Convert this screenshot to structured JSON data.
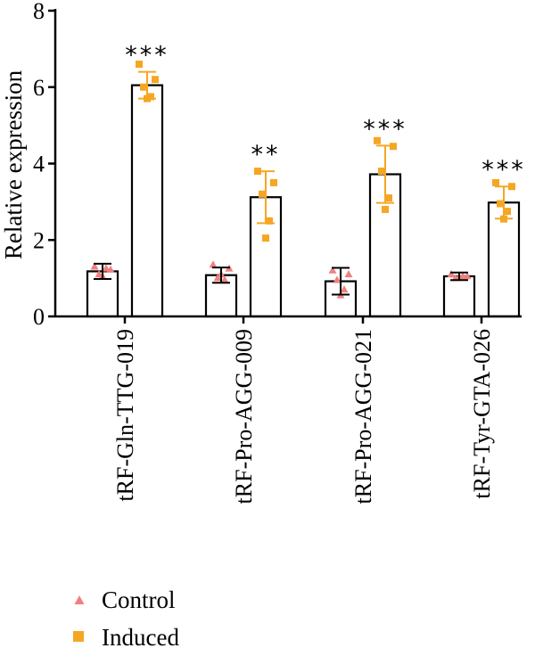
{
  "chart_data": {
    "type": "bar",
    "title": "",
    "xlabel": "",
    "ylabel": "Relative expression",
    "ylim": [
      0,
      8
    ],
    "yticks": [
      0,
      2,
      4,
      6,
      8
    ],
    "grid": false,
    "legend_position": "bottom-left",
    "categories": [
      "tRF-Gln-TTG-019",
      "tRF-Pro-AGG-009",
      "tRF-Pro-AGG-021",
      "tRF-Tyr-GTA-026"
    ],
    "significance": [
      "***",
      "**",
      "***",
      "***"
    ],
    "series": [
      {
        "name": "Control",
        "marker": "triangle",
        "color": "#f08080",
        "values": [
          1.18,
          1.08,
          0.92,
          1.05
        ],
        "error": [
          0.2,
          0.2,
          0.35,
          0.1
        ],
        "points": [
          [
            1.3,
            1.22,
            1.1,
            1.25,
            1.05
          ],
          [
            1.35,
            1.25,
            1.0,
            0.95,
            1.1
          ],
          [
            1.2,
            1.1,
            0.95,
            0.7,
            0.55
          ],
          [
            1.1,
            1.05,
            1.0,
            1.05,
            1.02
          ]
        ]
      },
      {
        "name": "Induced",
        "marker": "square",
        "color": "#f5a623",
        "values": [
          6.05,
          3.12,
          3.72,
          2.98
        ],
        "error": [
          0.35,
          0.68,
          0.75,
          0.42
        ],
        "points": [
          [
            6.6,
            6.2,
            6.0,
            5.75,
            5.7
          ],
          [
            3.8,
            3.5,
            3.2,
            2.5,
            2.05
          ],
          [
            4.6,
            4.45,
            3.8,
            3.1,
            2.8
          ],
          [
            3.5,
            3.4,
            2.95,
            2.75,
            2.55
          ]
        ]
      }
    ]
  }
}
